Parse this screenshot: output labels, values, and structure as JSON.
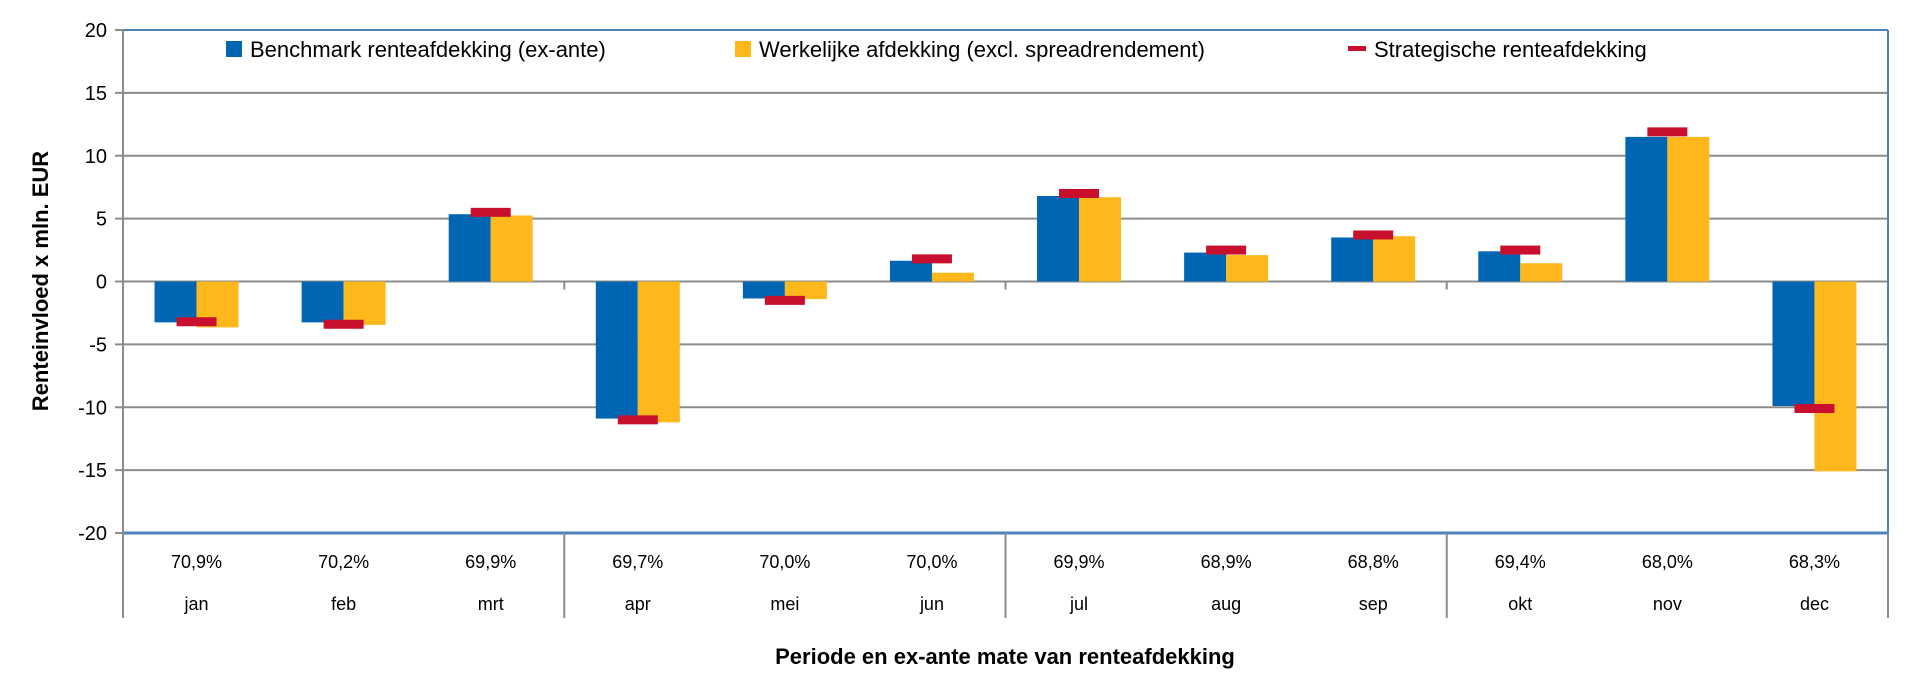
{
  "chart_data": {
    "type": "bar",
    "title": "",
    "xlabel": "Periode en ex-ante mate van renteafdekking",
    "ylabel": "Renteinvloed x mln. EUR",
    "ylim": [
      -20,
      20
    ],
    "yticks": [
      20,
      15,
      10,
      5,
      0,
      -5,
      -10,
      -15,
      -20
    ],
    "grid": true,
    "legend_position": "top",
    "categories": [
      "jan",
      "feb",
      "mrt",
      "apr",
      "mei",
      "jun",
      "jul",
      "aug",
      "sep",
      "okt",
      "nov",
      "dec"
    ],
    "category_sublabels": [
      "70,9%",
      "70,2%",
      "69,9%",
      "69,7%",
      "70,0%",
      "70,0%",
      "69,9%",
      "68,9%",
      "68,8%",
      "69,4%",
      "68,0%",
      "68,3%"
    ],
    "series": [
      {
        "name": "Benchmark renteafdekking (ex-ante)",
        "kind": "bar",
        "color": "#0066B3",
        "values": [
          -3.25,
          -3.25,
          5.35,
          -10.9,
          -1.35,
          1.65,
          6.8,
          2.3,
          3.5,
          2.4,
          11.5,
          -9.9
        ]
      },
      {
        "name": "Werkelijke afdekking (excl. spreadrendement)",
        "kind": "bar",
        "color": "#FFB81C",
        "values": [
          -3.65,
          -3.45,
          5.25,
          -11.2,
          -1.4,
          0.7,
          6.7,
          2.1,
          3.6,
          1.45,
          11.5,
          -15.1
        ]
      },
      {
        "name": "Strategische renteafdekking",
        "kind": "marker",
        "color": "#C8102E",
        "values": [
          -3.2,
          -3.4,
          5.5,
          -11.0,
          -1.5,
          1.8,
          7.0,
          2.5,
          3.7,
          2.5,
          11.9,
          -10.1
        ]
      }
    ],
    "quarter_separators_after": [
      "mrt",
      "jun",
      "sep"
    ]
  }
}
